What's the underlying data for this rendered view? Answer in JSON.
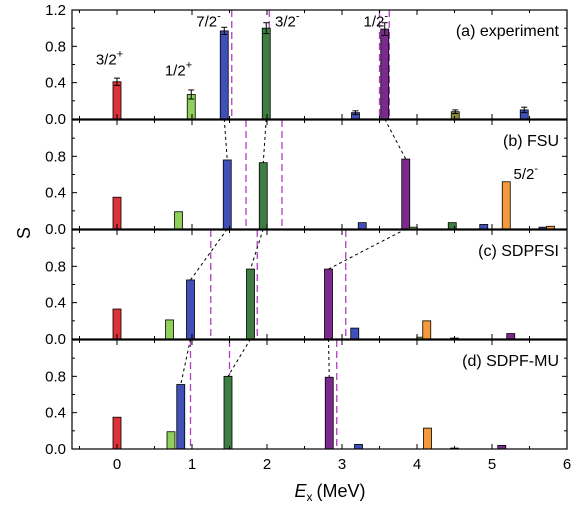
{
  "chart_data": {
    "type": "bar",
    "title": "",
    "xlabel": "E",
    "xlabel_sub": "x",
    "xlabel_unit": "(MeV)",
    "ylabel": "S",
    "xlim": [
      -0.6,
      6.0
    ],
    "xticks": [
      0,
      1,
      2,
      3,
      4,
      5,
      6
    ],
    "colors": {
      "red": "#e03038",
      "green": "#8ed05a",
      "blue": "#4050b8",
      "darkgreen": "#3e7e42",
      "purple": "#7a2a8c",
      "orange": "#f59a3a",
      "olive": "#8a8a3a"
    },
    "panels": [
      {
        "label": "(a) experiment",
        "ylim": [
          0,
          1.2
        ],
        "yticks": [
          "0.0",
          "0.4",
          "0.8",
          "1.2"
        ],
        "bars": [
          {
            "x": 0.0,
            "y": 0.41,
            "err": 0.04,
            "color": "red"
          },
          {
            "x": 0.99,
            "y": 0.27,
            "err": 0.05,
            "color": "green"
          },
          {
            "x": 1.43,
            "y": 0.97,
            "err": 0.04,
            "color": "blue"
          },
          {
            "x": 1.99,
            "y": 1.0,
            "err": 0.06,
            "color": "darkgreen"
          },
          {
            "x": 3.18,
            "y": 0.07,
            "err": 0.02,
            "color": "blue"
          },
          {
            "x": 3.57,
            "y": 0.99,
            "err": 0.07,
            "color": "purple"
          },
          {
            "x": 4.51,
            "y": 0.08,
            "err": 0.02,
            "color": "olive"
          },
          {
            "x": 5.43,
            "y": 0.1,
            "err": 0.03,
            "color": "blue"
          }
        ],
        "thresholds": [
          1.53,
          2.03,
          3.5,
          3.63
        ],
        "state_labels": [
          {
            "text": "3/2",
            "sup": "+",
            "x": -0.1,
            "y": 0.6
          },
          {
            "text": "1/2",
            "sup": "+",
            "x": 0.82,
            "y": 0.48
          },
          {
            "text": "7/2",
            "sup": "-",
            "x": 1.22,
            "y": 1.02
          },
          {
            "text": "3/2",
            "sup": "-",
            "x": 2.27,
            "y": 1.02
          },
          {
            "text": "1/2",
            "sup": "-",
            "x": 3.45,
            "y": 1.02
          }
        ]
      },
      {
        "label": "(b) FSU",
        "ylim": [
          0,
          1.2
        ],
        "yticks": [
          "0.0",
          "0.4",
          "0.8"
        ],
        "bars": [
          {
            "x": 0.0,
            "y": 0.35,
            "color": "red"
          },
          {
            "x": 0.82,
            "y": 0.19,
            "color": "green"
          },
          {
            "x": 1.47,
            "y": 0.76,
            "color": "blue"
          },
          {
            "x": 1.95,
            "y": 0.73,
            "color": "darkgreen"
          },
          {
            "x": 3.27,
            "y": 0.07,
            "color": "blue"
          },
          {
            "x": 3.85,
            "y": 0.77,
            "color": "purple"
          },
          {
            "x": 3.95,
            "y": 0.02,
            "color": "green"
          },
          {
            "x": 4.47,
            "y": 0.07,
            "color": "darkgreen"
          },
          {
            "x": 4.89,
            "y": 0.05,
            "color": "blue"
          },
          {
            "x": 5.19,
            "y": 0.52,
            "color": "orange"
          },
          {
            "x": 5.68,
            "y": 0.02,
            "color": "blue"
          },
          {
            "x": 5.78,
            "y": 0.03,
            "color": "orange"
          }
        ],
        "thresholds": [
          1.72,
          2.2
        ],
        "state_labels": [
          {
            "text": "5/2",
            "sup": "-",
            "x": 5.45,
            "y": 0.55
          }
        ]
      },
      {
        "label": "(c) SDPFSI",
        "ylim": [
          0,
          1.2
        ],
        "yticks": [
          "0.0",
          "0.4",
          "0.8"
        ],
        "bars": [
          {
            "x": 0.0,
            "y": 0.33,
            "color": "red"
          },
          {
            "x": 0.7,
            "y": 0.21,
            "color": "green"
          },
          {
            "x": 0.98,
            "y": 0.65,
            "color": "blue"
          },
          {
            "x": 1.78,
            "y": 0.77,
            "color": "darkgreen"
          },
          {
            "x": 2.82,
            "y": 0.77,
            "color": "purple"
          },
          {
            "x": 3.17,
            "y": 0.12,
            "color": "blue"
          },
          {
            "x": 4.05,
            "y": 0.02,
            "color": "green"
          },
          {
            "x": 4.13,
            "y": 0.2,
            "color": "orange"
          },
          {
            "x": 4.5,
            "y": 0.01,
            "color": "blue"
          },
          {
            "x": 5.25,
            "y": 0.06,
            "color": "purple"
          }
        ],
        "thresholds": [
          1.25,
          1.87,
          3.05
        ],
        "state_labels": []
      },
      {
        "label": "(d) SDPF-MU",
        "ylim": [
          0,
          1.2
        ],
        "yticks": [
          "0.0",
          "0.4",
          "0.8"
        ],
        "bars": [
          {
            "x": 0.0,
            "y": 0.35,
            "color": "red"
          },
          {
            "x": 0.72,
            "y": 0.19,
            "color": "green"
          },
          {
            "x": 0.85,
            "y": 0.71,
            "color": "blue"
          },
          {
            "x": 1.48,
            "y": 0.8,
            "color": "darkgreen"
          },
          {
            "x": 2.83,
            "y": 0.79,
            "color": "purple"
          },
          {
            "x": 3.22,
            "y": 0.05,
            "color": "blue"
          },
          {
            "x": 4.14,
            "y": 0.23,
            "color": "orange"
          },
          {
            "x": 4.5,
            "y": 0.01,
            "color": "blue"
          },
          {
            "x": 5.13,
            "y": 0.04,
            "color": "purple"
          }
        ],
        "thresholds": [
          0.98,
          1.5,
          2.93
        ],
        "state_labels": []
      }
    ],
    "connectors": [
      {
        "from_panel": 0,
        "from_x": 1.43,
        "to_panel": 1,
        "to_x": 1.47
      },
      {
        "from_panel": 0,
        "from_x": 1.99,
        "to_panel": 1,
        "to_x": 1.95
      },
      {
        "from_panel": 0,
        "from_x": 3.57,
        "to_panel": 1,
        "to_x": 3.85
      },
      {
        "from_panel": 1,
        "from_x": 1.47,
        "to_panel": 2,
        "to_x": 0.98
      },
      {
        "from_panel": 1,
        "from_x": 1.95,
        "to_panel": 2,
        "to_x": 1.78
      },
      {
        "from_panel": 1,
        "from_x": 3.85,
        "to_panel": 2,
        "to_x": 2.82
      },
      {
        "from_panel": 2,
        "from_x": 0.98,
        "to_panel": 3,
        "to_x": 0.85
      },
      {
        "from_panel": 2,
        "from_x": 1.78,
        "to_panel": 3,
        "to_x": 1.48
      },
      {
        "from_panel": 2,
        "from_x": 2.82,
        "to_panel": 3,
        "to_x": 2.83
      }
    ]
  }
}
